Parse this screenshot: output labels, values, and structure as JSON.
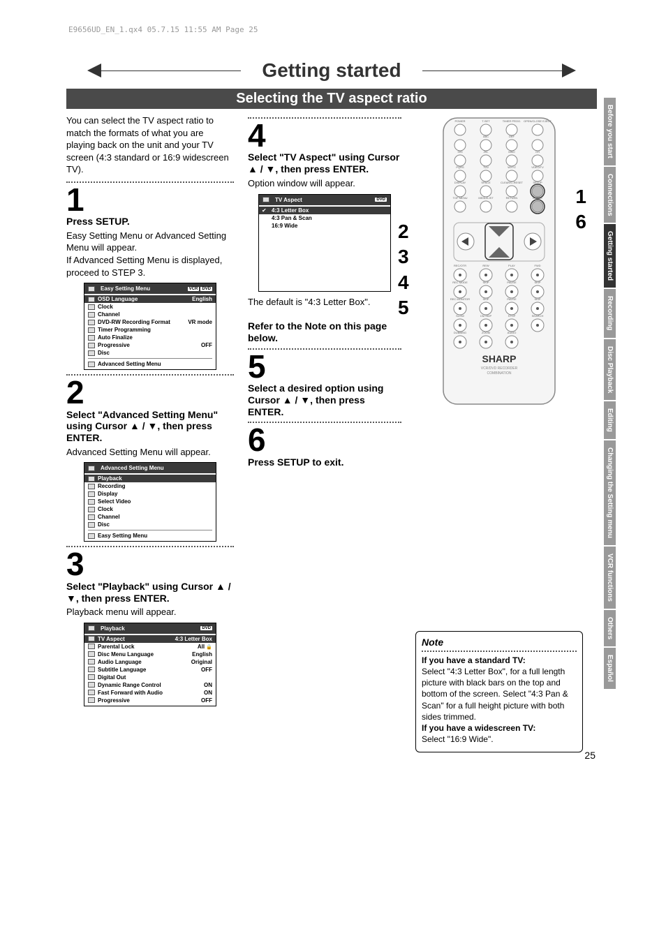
{
  "header_info": "E9656UD_EN_1.qx4  05.7.15  11:55 AM  Page 25",
  "page_title": "Getting started",
  "page_subtitle": "Selecting the TV aspect ratio",
  "page_number": "25",
  "intro": "You can select the TV aspect ratio to match the formats of what you are playing back on the unit and your TV screen (4:3 standard or 16:9 widescreen TV).",
  "steps": {
    "s1": {
      "num": "1",
      "head": "Press SETUP.",
      "body": "Easy Setting Menu or Advanced Setting Menu will appear.\nIf Advanced Setting Menu is displayed, proceed to STEP 3."
    },
    "s2": {
      "num": "2",
      "head": "Select \"Advanced Setting Menu\" using Cursor ▲ / ▼, then press ENTER.",
      "body": "Advanced Setting Menu will appear."
    },
    "s3": {
      "num": "3",
      "head": "Select \"Playback\" using Cursor ▲ / ▼, then press ENTER.",
      "body": "Playback menu will appear."
    },
    "s4": {
      "num": "4",
      "head": "Select \"TV Aspect\" using Cursor ▲ / ▼, then press ENTER.",
      "body": "Option window will appear.",
      "after": "The default is \"4:3 Letter Box\".",
      "refer": "Refer to the Note on this page below."
    },
    "s5": {
      "num": "5",
      "head": "Select a desired option using Cursor ▲ / ▼, then press ENTER."
    },
    "s6": {
      "num": "6",
      "head": "Press SETUP to exit."
    }
  },
  "menu_easy": {
    "title": "Easy Setting Menu",
    "badges": [
      "VCR",
      "DVD"
    ],
    "rows": [
      {
        "label": "OSD Language",
        "value": "English",
        "sel": true
      },
      {
        "label": "Clock",
        "value": ""
      },
      {
        "label": "Channel",
        "value": ""
      },
      {
        "label": "DVD-RW Recording Format",
        "value": "VR mode"
      },
      {
        "label": "Timer Programming",
        "value": ""
      },
      {
        "label": "Auto Finalize",
        "value": ""
      },
      {
        "label": "Progressive",
        "value": "OFF"
      },
      {
        "label": "Disc",
        "value": ""
      }
    ],
    "footer": "Advanced Setting Menu"
  },
  "menu_advanced": {
    "title": "Advanced Setting Menu",
    "rows": [
      {
        "label": "Playback",
        "sel": true
      },
      {
        "label": "Recording"
      },
      {
        "label": "Display"
      },
      {
        "label": "Select Video"
      },
      {
        "label": "Clock"
      },
      {
        "label": "Channel"
      },
      {
        "label": "Disc"
      }
    ],
    "footer": "Easy Setting Menu"
  },
  "menu_playback": {
    "title": "Playback",
    "badges": [
      "DVD"
    ],
    "rows": [
      {
        "label": "TV Aspect",
        "value": "4:3 Letter Box",
        "sel": true
      },
      {
        "label": "Parental Lock",
        "value": "All",
        "lock": true
      },
      {
        "label": "Disc Menu Language",
        "value": "English"
      },
      {
        "label": "Audio Language",
        "value": "Original"
      },
      {
        "label": "Subtitle Language",
        "value": "OFF"
      },
      {
        "label": "Digital Out",
        "value": ""
      },
      {
        "label": "Dynamic Range Control",
        "value": "ON"
      },
      {
        "label": "Fast Forward with Audio",
        "value": "ON"
      },
      {
        "label": "Progressive",
        "value": "OFF"
      }
    ]
  },
  "menu_aspect": {
    "title": "TV Aspect",
    "badges": [
      "DVD"
    ],
    "rows": [
      {
        "label": "4:3 Letter Box",
        "sel": true
      },
      {
        "label": "4:3 Pan & Scan"
      },
      {
        "label": "16:9 Wide"
      }
    ]
  },
  "note": {
    "title": "Note",
    "h1": "If you have a standard TV:",
    "p1": "Select \"4:3 Letter Box\", for a full length picture with black bars on the top and bottom of the screen. Select \"4:3 Pan & Scan\" for a full height picture with both sides trimmed.",
    "h2": "If you have a widescreen TV:",
    "p2": "Select \"16:9 Wide\"."
  },
  "side_tabs": [
    {
      "label": "Before you start",
      "active": false
    },
    {
      "label": "Connections",
      "active": false
    },
    {
      "label": "Getting started",
      "active": true
    },
    {
      "label": "Recording",
      "active": false
    },
    {
      "label": "Disc Playback",
      "active": false
    },
    {
      "label": "Editing",
      "active": false
    },
    {
      "label": "Changing the Setting menu",
      "active": false
    },
    {
      "label": "VCR functions",
      "active": false
    },
    {
      "label": "Others",
      "active": false
    },
    {
      "label": "Español",
      "active": false
    }
  ],
  "side_nums_left": [
    "2",
    "3",
    "4",
    "5"
  ],
  "side_nums_right": [
    "1",
    "6"
  ],
  "remote": {
    "brand": "SHARP",
    "subtext": "VCR/DVD RECORDER\nCOMBINATION",
    "button_rows": [
      [
        "POWER",
        "T-SET",
        "TIMER PROG.",
        "OPEN/CLOSE EJECT"
      ],
      [
        "",
        "ABC",
        "DEF",
        ""
      ],
      [
        "GHI",
        "JKL",
        "MNO",
        "CH"
      ],
      [
        "PQRS",
        "TUV",
        "WXYZ",
        "VDEO/TV"
      ],
      [
        "DISPLAY",
        "SPACE",
        "CLEAR/C-RESET",
        "SETUP"
      ],
      [
        "TOP MENU",
        "MENU/LIST",
        "RETURN",
        "ENTER"
      ]
    ],
    "transport_rows": [
      [
        "REC/OTR",
        "REW",
        "PLAY",
        "FWD"
      ],
      [
        "REC MODE",
        "SKIP",
        "PAUSE",
        "SKIP"
      ],
      [
        "REC MONITOR",
        "SKIP",
        "PAUSE",
        "SKIP"
      ],
      [
        "SLOW",
        "CM SKIP",
        "STOP",
        "SEARCH"
      ],
      [
        "DUBBING",
        "ZOOM",
        "AUDIO",
        ""
      ]
    ]
  },
  "colors": {
    "banner_bg": "#4a4a4a",
    "tab_bg": "#999999",
    "tab_active": "#333333",
    "menu_header": "#3a3a3a"
  }
}
